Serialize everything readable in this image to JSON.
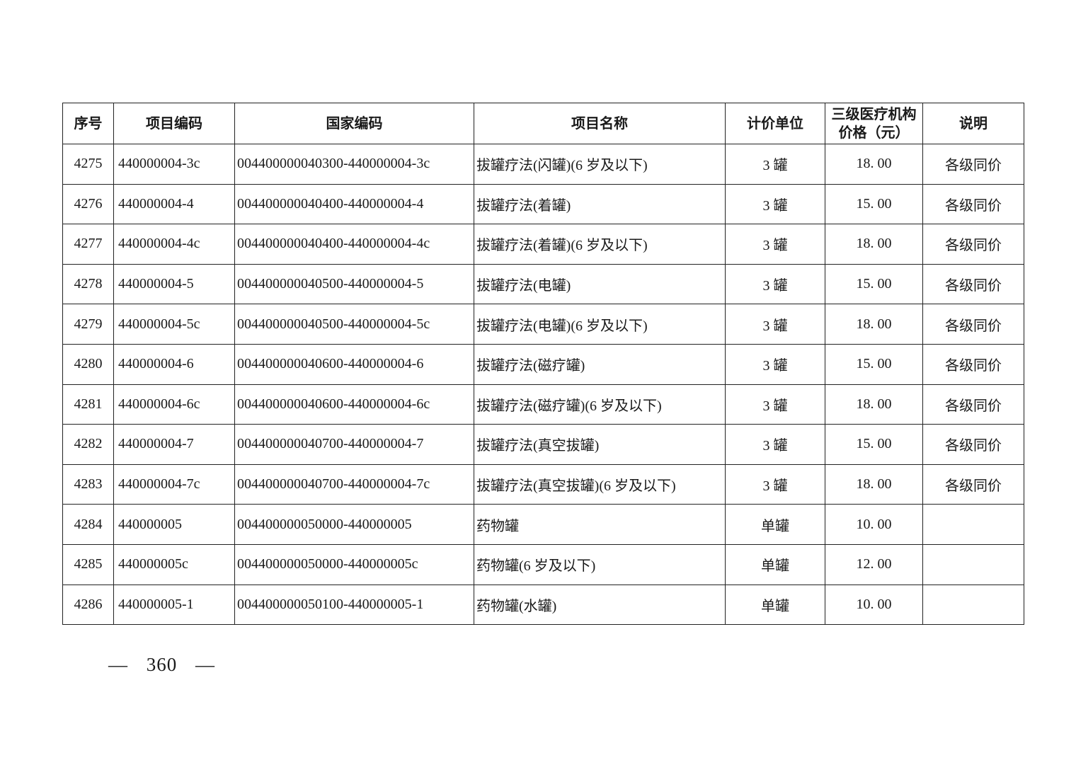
{
  "colors": {
    "text": "#1a1a1a",
    "border": "#222222",
    "background": "#ffffff"
  },
  "table": {
    "headers": [
      "序号",
      "项目编码",
      "国家编码",
      "项目名称",
      "计价单位",
      "三级医疗机构\n价格（元）",
      "说明"
    ],
    "rows": [
      {
        "seq": "4275",
        "item_code": "440000004-3c",
        "national_code": "004400000040300-440000004-3c",
        "name": "拔罐疗法(闪罐)(6 岁及以下)",
        "unit": "3 罐",
        "price": "18. 00",
        "note": "各级同价"
      },
      {
        "seq": "4276",
        "item_code": "440000004-4",
        "national_code": "004400000040400-440000004-4",
        "name": "拔罐疗法(着罐)",
        "unit": "3 罐",
        "price": "15. 00",
        "note": "各级同价"
      },
      {
        "seq": "4277",
        "item_code": "440000004-4c",
        "national_code": "004400000040400-440000004-4c",
        "name": "拔罐疗法(着罐)(6 岁及以下)",
        "unit": "3 罐",
        "price": "18. 00",
        "note": "各级同价"
      },
      {
        "seq": "4278",
        "item_code": "440000004-5",
        "national_code": "004400000040500-440000004-5",
        "name": "拔罐疗法(电罐)",
        "unit": "3 罐",
        "price": "15. 00",
        "note": "各级同价"
      },
      {
        "seq": "4279",
        "item_code": "440000004-5c",
        "national_code": "004400000040500-440000004-5c",
        "name": "拔罐疗法(电罐)(6 岁及以下)",
        "unit": "3 罐",
        "price": "18. 00",
        "note": "各级同价"
      },
      {
        "seq": "4280",
        "item_code": "440000004-6",
        "national_code": "004400000040600-440000004-6",
        "name": "拔罐疗法(磁疗罐)",
        "unit": "3 罐",
        "price": "15. 00",
        "note": "各级同价"
      },
      {
        "seq": "4281",
        "item_code": "440000004-6c",
        "national_code": "004400000040600-440000004-6c",
        "name": "拔罐疗法(磁疗罐)(6 岁及以下)",
        "unit": "3 罐",
        "price": "18. 00",
        "note": "各级同价"
      },
      {
        "seq": "4282",
        "item_code": "440000004-7",
        "national_code": "004400000040700-440000004-7",
        "name": "拔罐疗法(真空拔罐)",
        "unit": "3 罐",
        "price": "15. 00",
        "note": "各级同价"
      },
      {
        "seq": "4283",
        "item_code": "440000004-7c",
        "national_code": "004400000040700-440000004-7c",
        "name": "拔罐疗法(真空拔罐)(6 岁及以下)",
        "unit": "3 罐",
        "price": "18. 00",
        "note": "各级同价"
      },
      {
        "seq": "4284",
        "item_code": "440000005",
        "national_code": "004400000050000-440000005",
        "name": "药物罐",
        "unit": "单罐",
        "price": "10. 00",
        "note": ""
      },
      {
        "seq": "4285",
        "item_code": "440000005c",
        "national_code": "004400000050000-440000005c",
        "name": "药物罐(6 岁及以下)",
        "unit": "单罐",
        "price": "12. 00",
        "note": ""
      },
      {
        "seq": "4286",
        "item_code": "440000005-1",
        "national_code": "004400000050100-440000005-1",
        "name": "药物罐(水罐)",
        "unit": "单罐",
        "price": "10. 00",
        "note": ""
      }
    ]
  },
  "footer": {
    "page_number": "— 360 —"
  }
}
